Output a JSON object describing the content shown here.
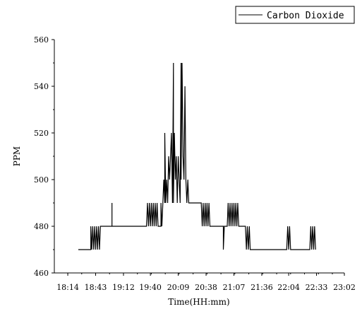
{
  "chart_data": {
    "type": "line",
    "xlabel": "Time(HH:mm)",
    "ylabel": "PPM",
    "ylim": [
      460,
      560
    ],
    "yticks": [
      460,
      480,
      500,
      520,
      540,
      560
    ],
    "xlim": [
      "18:00",
      "23:02"
    ],
    "xticks": [
      "18:14",
      "18:43",
      "19:12",
      "19:40",
      "20:09",
      "20:38",
      "21:07",
      "21:36",
      "22:04",
      "22:33",
      "23:02"
    ],
    "legend": {
      "position": "top-right"
    },
    "series": [
      {
        "name": "Carbon Dioxide",
        "color": "#000000",
        "points": [
          [
            "18:25",
            470
          ],
          [
            "18:38",
            470
          ],
          [
            "18:38",
            480
          ],
          [
            "18:39",
            470
          ],
          [
            "18:40",
            480
          ],
          [
            "18:41",
            470
          ],
          [
            "18:42",
            480
          ],
          [
            "18:43",
            470
          ],
          [
            "18:44",
            480
          ],
          [
            "18:45",
            470
          ],
          [
            "18:46",
            480
          ],
          [
            "18:47",
            470
          ],
          [
            "18:48",
            480
          ],
          [
            "19:00",
            480
          ],
          [
            "19:00",
            490
          ],
          [
            "19:00",
            480
          ],
          [
            "19:36",
            480
          ],
          [
            "19:37",
            490
          ],
          [
            "19:38",
            480
          ],
          [
            "19:39",
            490
          ],
          [
            "19:40",
            480
          ],
          [
            "19:41",
            490
          ],
          [
            "19:42",
            480
          ],
          [
            "19:43",
            490
          ],
          [
            "19:44",
            480
          ],
          [
            "19:45",
            490
          ],
          [
            "19:46",
            480
          ],
          [
            "19:47",
            490
          ],
          [
            "19:48",
            480
          ],
          [
            "19:51",
            480
          ],
          [
            "19:51",
            490
          ],
          [
            "19:52",
            480
          ],
          [
            "19:53",
            490
          ],
          [
            "19:54",
            500
          ],
          [
            "19:55",
            490
          ],
          [
            "19:55",
            520
          ],
          [
            "19:56",
            490
          ],
          [
            "19:57",
            500
          ],
          [
            "19:58",
            490
          ],
          [
            "19:59",
            510
          ],
          [
            "20:00",
            500
          ],
          [
            "20:01",
            510
          ],
          [
            "20:02",
            520
          ],
          [
            "20:03",
            490
          ],
          [
            "20:04",
            550
          ],
          [
            "20:04",
            490
          ],
          [
            "20:05",
            520
          ],
          [
            "20:06",
            500
          ],
          [
            "20:07",
            510
          ],
          [
            "20:08",
            490
          ],
          [
            "20:09",
            510
          ],
          [
            "20:10",
            500
          ],
          [
            "20:11",
            490
          ],
          [
            "20:12",
            550
          ],
          [
            "20:12",
            500
          ],
          [
            "20:13",
            550
          ],
          [
            "20:14",
            510
          ],
          [
            "20:15",
            500
          ],
          [
            "20:16",
            540
          ],
          [
            "20:17",
            500
          ],
          [
            "20:18",
            490
          ],
          [
            "20:19",
            500
          ],
          [
            "20:20",
            490
          ],
          [
            "20:33",
            490
          ],
          [
            "20:34",
            480
          ],
          [
            "20:35",
            490
          ],
          [
            "20:36",
            480
          ],
          [
            "20:37",
            490
          ],
          [
            "20:38",
            480
          ],
          [
            "20:39",
            490
          ],
          [
            "20:40",
            480
          ],
          [
            "20:41",
            490
          ],
          [
            "20:42",
            480
          ],
          [
            "20:56",
            480
          ],
          [
            "20:56",
            470
          ],
          [
            "20:57",
            480
          ],
          [
            "21:00",
            480
          ],
          [
            "21:01",
            490
          ],
          [
            "21:02",
            480
          ],
          [
            "21:03",
            490
          ],
          [
            "21:04",
            480
          ],
          [
            "21:05",
            490
          ],
          [
            "21:06",
            480
          ],
          [
            "21:07",
            490
          ],
          [
            "21:08",
            480
          ],
          [
            "21:09",
            490
          ],
          [
            "21:10",
            480
          ],
          [
            "21:11",
            490
          ],
          [
            "21:12",
            480
          ],
          [
            "21:19",
            480
          ],
          [
            "21:20",
            470
          ],
          [
            "21:21",
            480
          ],
          [
            "21:22",
            470
          ],
          [
            "21:23",
            480
          ],
          [
            "21:24",
            470
          ],
          [
            "22:02",
            470
          ],
          [
            "22:03",
            480
          ],
          [
            "22:04",
            470
          ],
          [
            "22:05",
            480
          ],
          [
            "22:06",
            470
          ],
          [
            "22:26",
            470
          ],
          [
            "22:27",
            480
          ],
          [
            "22:28",
            470
          ],
          [
            "22:29",
            480
          ],
          [
            "22:30",
            470
          ],
          [
            "22:31",
            480
          ],
          [
            "22:32",
            470
          ]
        ]
      }
    ]
  }
}
